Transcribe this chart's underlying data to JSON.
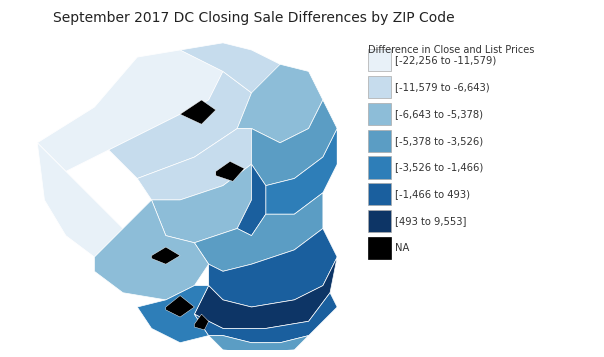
{
  "title": "September 2017 DC Closing Sale Differences by ZIP Code",
  "title_fontsize": 10,
  "legend_title": "Difference in Close and List Prices",
  "legend_labels": [
    "[-22,256 to -11,579)",
    "[-11,579 to -6,643)",
    "[-6,643 to -5,378)",
    "[-5,378 to -3,526)",
    "[-3,526 to -1,466)",
    "[-1,466 to 493)",
    "[493 to 9,553]",
    "NA"
  ],
  "legend_colors": [
    "#e8f1f8",
    "#c6dced",
    "#8dbdd8",
    "#5b9dc4",
    "#2e7eb8",
    "#1a5f9e",
    "#0d3566",
    "#000000"
  ],
  "background_color": "#ffffff"
}
